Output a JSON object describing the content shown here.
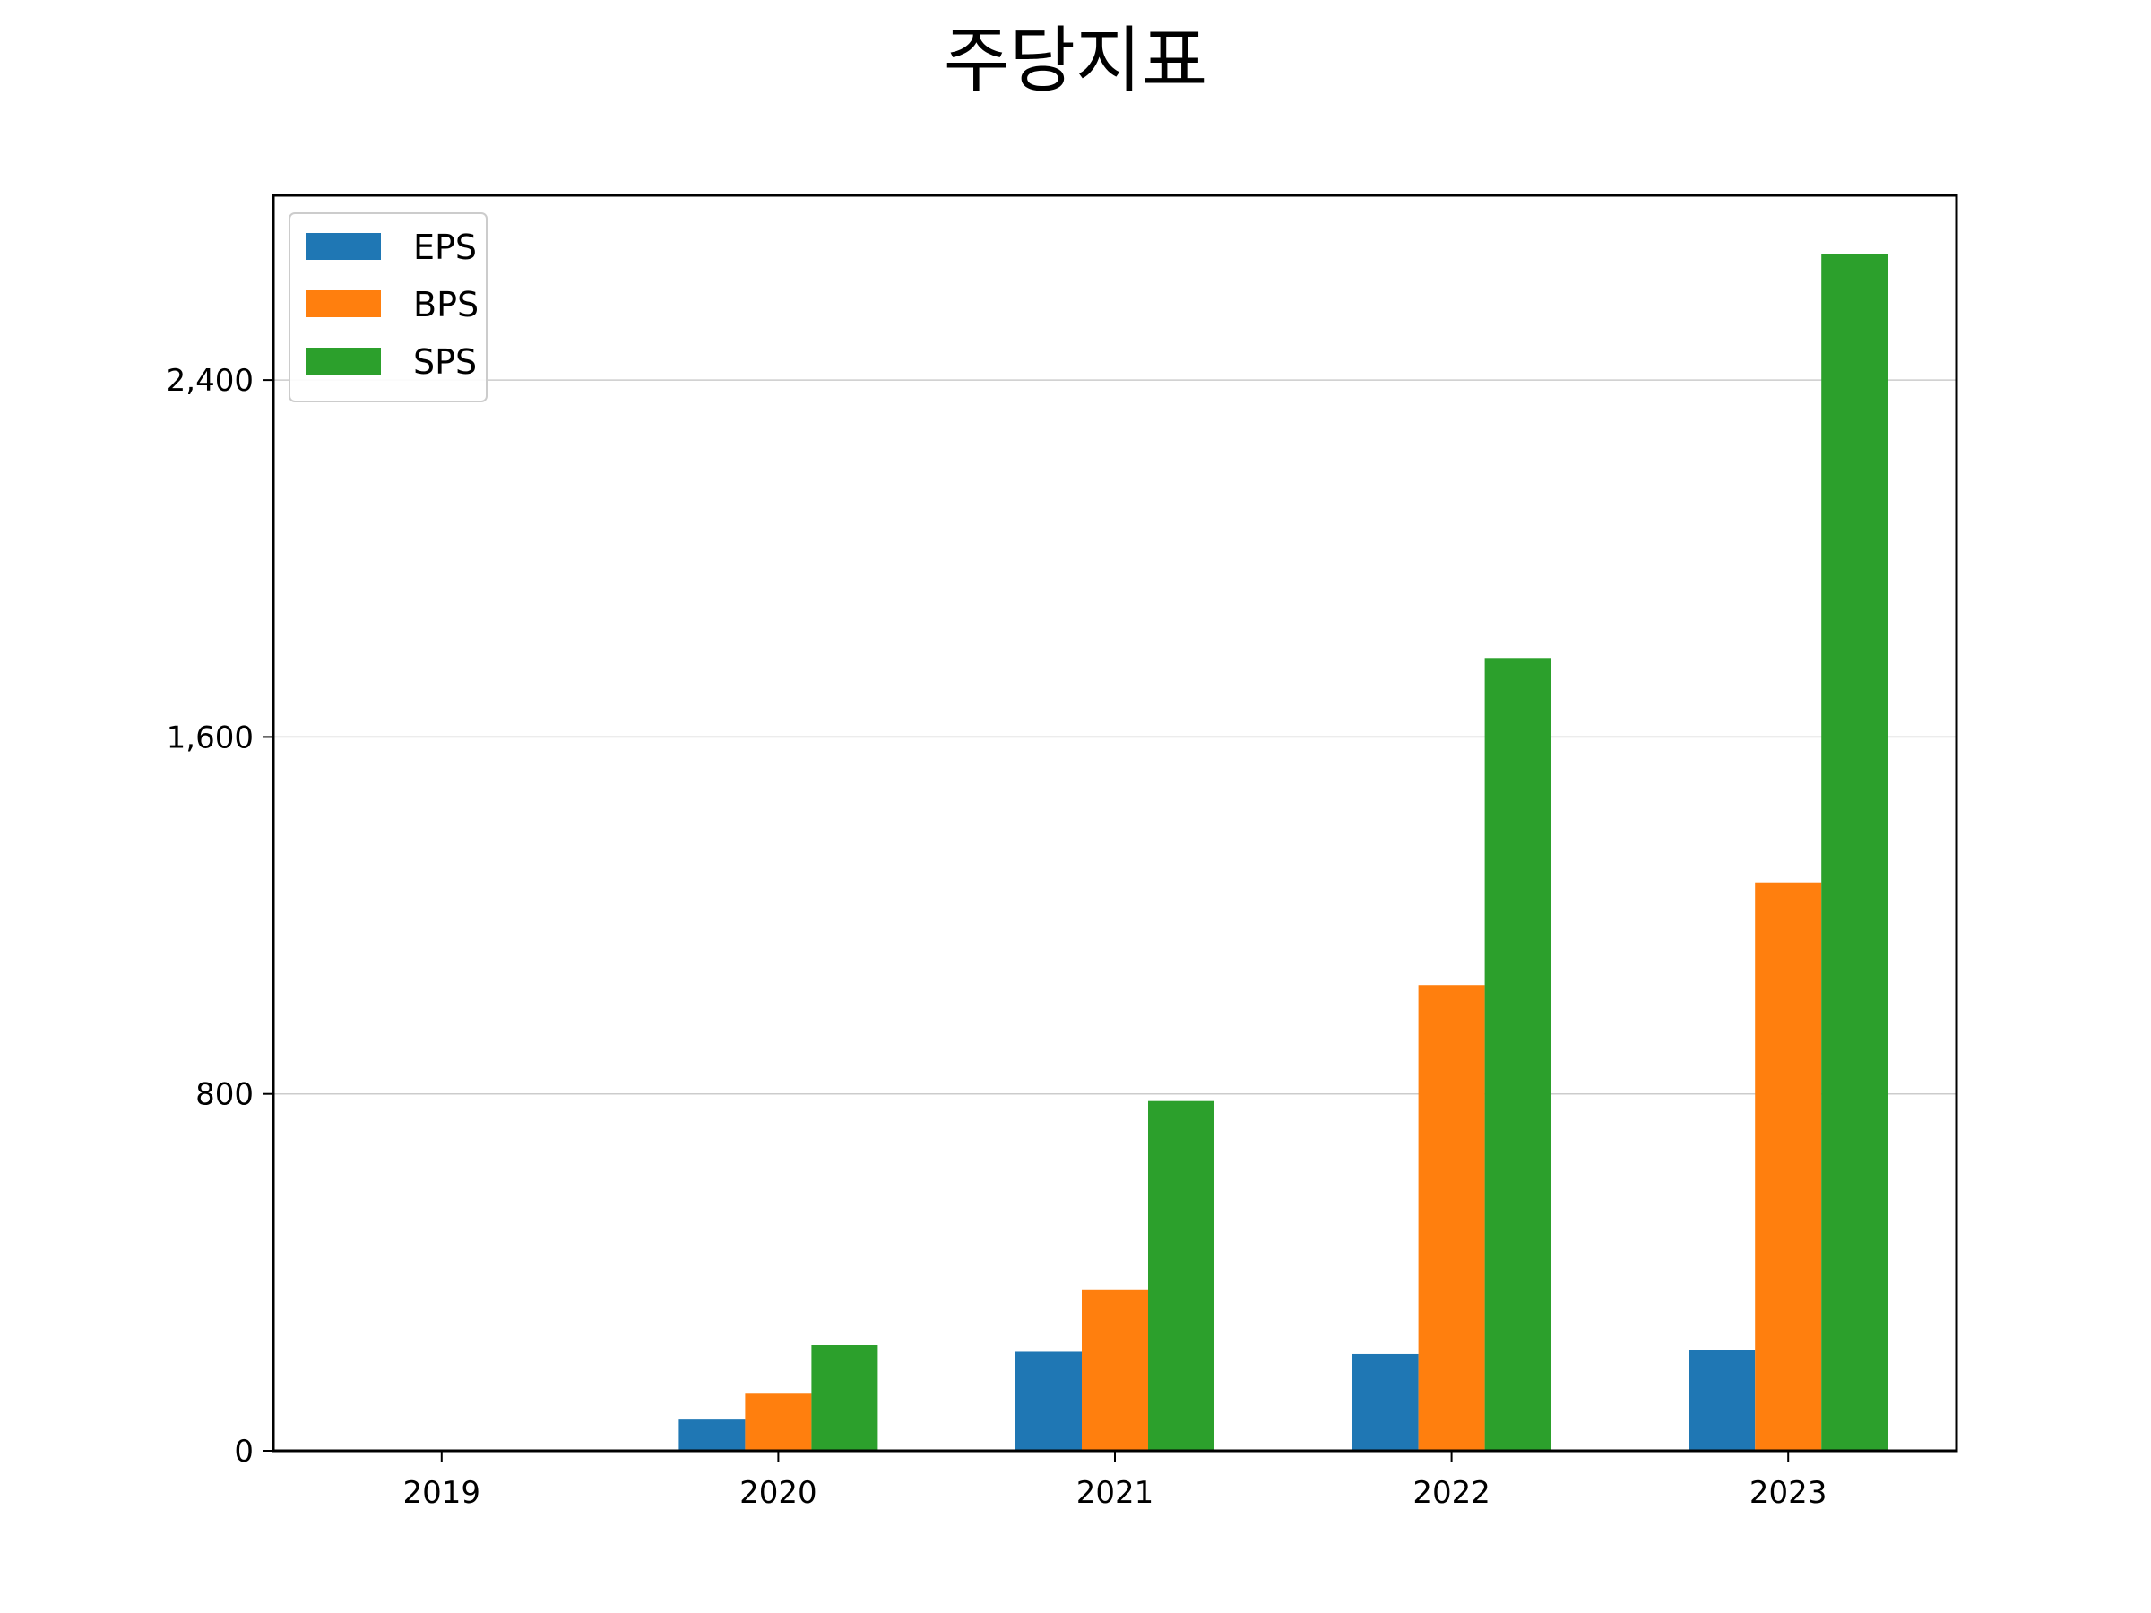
{
  "chart_data": {
    "type": "bar",
    "title": "주당지표",
    "xlabel": "",
    "ylabel": "",
    "categories": [
      "2019",
      "2020",
      "2021",
      "2022",
      "2023"
    ],
    "series": [
      {
        "name": "EPS",
        "color": "#1f77b4",
        "values": [
          0,
          70,
          222,
          217,
          226
        ]
      },
      {
        "name": "BPS",
        "color": "#ff7f0e",
        "values": [
          0,
          128,
          362,
          1044,
          1274
        ]
      },
      {
        "name": "SPS",
        "color": "#2ca02c",
        "values": [
          0,
          237,
          784,
          1777,
          2682
        ]
      }
    ],
    "ylim": [
      0,
      2814
    ],
    "yticks": [
      0,
      800,
      1600,
      2400
    ],
    "ytick_labels": [
      "0",
      "800",
      "1,600",
      "2,400"
    ],
    "grid": {
      "y": true,
      "x": false,
      "color": "#cccccc"
    },
    "legend": {
      "position": "top-left"
    }
  }
}
